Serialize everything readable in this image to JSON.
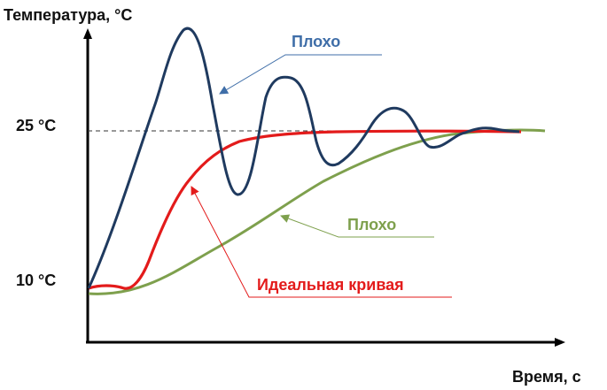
{
  "axes": {
    "y_title": "Температура, °C",
    "x_title": "Время, с",
    "ticks": {
      "high": "25 °C",
      "low": "10 °C"
    }
  },
  "curves": {
    "oscillating": {
      "label": "Плохо",
      "color": "#1f3a5f",
      "label_color": "#3f6ea8"
    },
    "ideal": {
      "label": "Идеальная кривая",
      "color": "#e31b1b"
    },
    "slow": {
      "label": "Плохо",
      "color": "#7ea04d"
    }
  },
  "colors": {
    "axis": "#000000",
    "setpoint_line": "#333333"
  }
}
